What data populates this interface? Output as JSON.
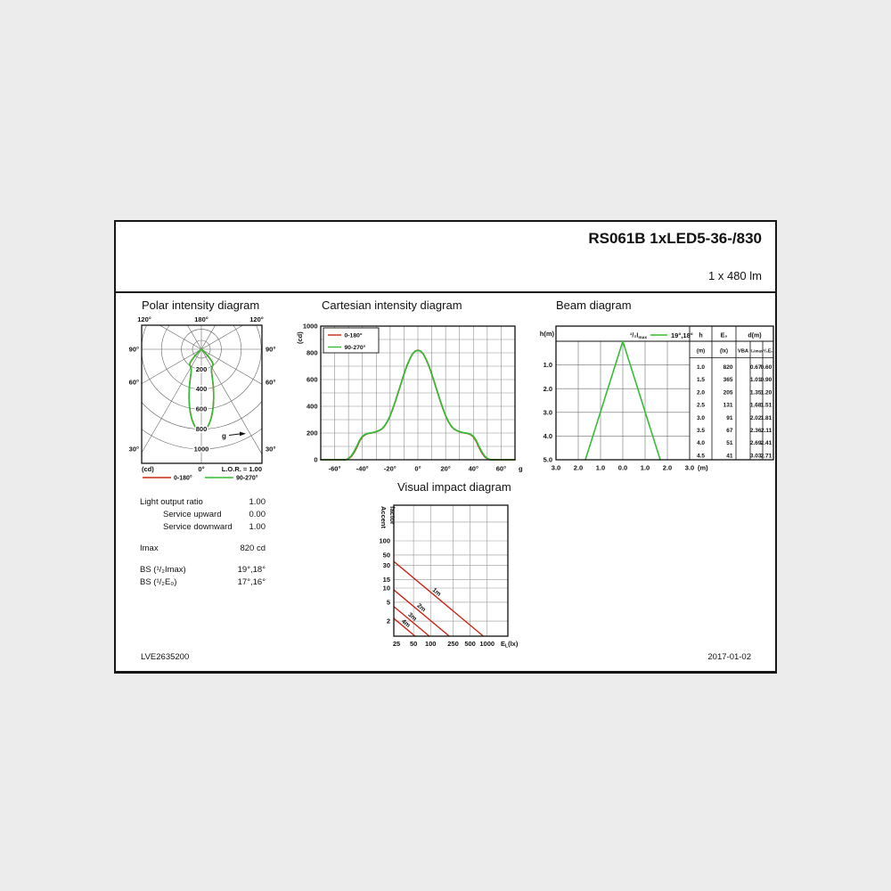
{
  "header": {
    "title": "RS061B 1xLED5-36-/830",
    "lumen": "1 x 480 lm"
  },
  "footer": {
    "left": "LVE2635200",
    "right": "2017-01-02"
  },
  "colors": {
    "red": "#cb2517",
    "green": "#35bd35"
  },
  "photometrics": {
    "rows": [
      {
        "label": "Light output ratio",
        "value": "1.00"
      },
      {
        "label": "Service upward",
        "value": "0.00",
        "indent": true
      },
      {
        "label": "Service downward",
        "value": "1.00",
        "indent": true
      },
      {
        "label": "Imax",
        "value": "820 cd",
        "gap": true
      },
      {
        "label": "BS (¹/₂Imax)",
        "value": "19°,18°",
        "gap": true
      },
      {
        "label": "BS (¹/₂E₀)",
        "value": "17°,16°"
      }
    ]
  },
  "chart_data": [
    {
      "id": "polar",
      "type": "polar-line",
      "title": "Polar intensity diagram",
      "rings_cd": [
        200,
        400,
        600,
        800,
        1000
      ],
      "max_cd": 1000,
      "top_labels": [
        "120°",
        "180°",
        "120°"
      ],
      "side_labels": [
        "90°",
        "60°",
        "30°"
      ],
      "bottom_left": "(cd)",
      "bottom_center": "0°",
      "bottom_right": "L.O.R. = 1.00",
      "gamma_label": "g",
      "legend": [
        {
          "name": "0-180°",
          "color": "red"
        },
        {
          "name": "90-270°",
          "color": "green"
        }
      ]
    },
    {
      "id": "cartesian",
      "type": "line",
      "title": "Cartesian intensity diagram",
      "ylabel": "(cd)",
      "x_axis_symbol": "g",
      "ylim": [
        0,
        1000
      ],
      "xlim": [
        -70,
        70
      ],
      "yticks": [
        0,
        200,
        400,
        600,
        800,
        1000
      ],
      "xtick_values": [
        -60,
        -40,
        -20,
        0,
        20,
        40,
        60
      ],
      "xtick_labels": [
        "-60°",
        "-40°",
        "-20°",
        "0°",
        "20°",
        "40°",
        "60°"
      ],
      "grid_step_x": 10,
      "grid_step_y": 100,
      "series": [
        {
          "name": "0-180°",
          "color": "red",
          "x": [
            -70,
            -52,
            -50,
            -48,
            -46,
            -44,
            -42,
            -40,
            -38,
            -36,
            -34,
            -32,
            -30,
            -28,
            -26,
            -24,
            -22,
            -20,
            -18,
            -16,
            -14,
            -12,
            -10,
            -8,
            -6,
            -4,
            -2,
            0,
            2,
            4,
            6,
            8,
            10,
            12,
            14,
            16,
            18,
            20,
            22,
            24,
            26,
            28,
            30,
            32,
            34,
            36,
            38,
            40,
            42,
            44,
            46,
            48,
            50,
            52,
            70
          ],
          "y": [
            0,
            0,
            8,
            25,
            55,
            95,
            140,
            172,
            188,
            196,
            200,
            204,
            210,
            218,
            230,
            252,
            285,
            330,
            385,
            445,
            510,
            575,
            640,
            700,
            750,
            790,
            812,
            820,
            812,
            790,
            750,
            700,
            640,
            575,
            510,
            445,
            385,
            330,
            285,
            252,
            230,
            218,
            210,
            204,
            200,
            196,
            188,
            172,
            140,
            95,
            55,
            25,
            8,
            0,
            0
          ]
        },
        {
          "name": "90-270°",
          "color": "green",
          "x": [
            -70,
            -52,
            -50,
            -48,
            -46,
            -44,
            -42,
            -40,
            -38,
            -36,
            -34,
            -32,
            -30,
            -28,
            -26,
            -24,
            -22,
            -20,
            -18,
            -16,
            -14,
            -12,
            -10,
            -8,
            -6,
            -4,
            -2,
            0,
            2,
            4,
            6,
            8,
            10,
            12,
            14,
            16,
            18,
            20,
            22,
            24,
            26,
            28,
            30,
            32,
            34,
            36,
            38,
            40,
            42,
            44,
            46,
            48,
            50,
            52,
            70
          ],
          "y": [
            0,
            0,
            10,
            30,
            62,
            102,
            146,
            176,
            190,
            197,
            201,
            205,
            211,
            219,
            231,
            253,
            286,
            331,
            386,
            446,
            511,
            576,
            641,
            701,
            751,
            791,
            813,
            818,
            813,
            791,
            751,
            701,
            641,
            576,
            511,
            446,
            386,
            331,
            286,
            253,
            231,
            219,
            211,
            205,
            201,
            197,
            190,
            176,
            146,
            102,
            62,
            30,
            10,
            0,
            0
          ]
        }
      ]
    },
    {
      "id": "beam",
      "type": "beam",
      "title": "Beam diagram",
      "ylabel": "h(m)",
      "x_unit": "(m)",
      "legend_main": "¹/₂I",
      "legend_sub": "max",
      "legend_value": "19°,18°",
      "h_ticks": [
        "1.0",
        "2.0",
        "3.0",
        "4.0",
        "5.0"
      ],
      "x_ticks": [
        "3.0",
        "2.0",
        "1.0",
        "0.0",
        "1.0",
        "2.0",
        "3.0"
      ],
      "beam_line": {
        "color": "green",
        "apex_h": 0,
        "half_width_at_h5_m": 1.68
      },
      "table": {
        "col_headers": [
          "h",
          "E₀",
          "d(m)"
        ],
        "sub_headers": [
          "(m)",
          "(lx)",
          "VBA",
          "¹/₂Imax",
          "¹/₂E₀"
        ],
        "rows": [
          [
            "1.0",
            "820",
            "",
            "0.67",
            "0.60"
          ],
          [
            "1.5",
            "365",
            "",
            "1.01",
            "0.90"
          ],
          [
            "2.0",
            "205",
            "",
            "1.35",
            "1.20"
          ],
          [
            "2.5",
            "131",
            "",
            "1.68",
            "1.51"
          ],
          [
            "3.0",
            "91",
            "",
            "2.02",
            "1.81"
          ],
          [
            "3.5",
            "67",
            "",
            "2.36",
            "2.11"
          ],
          [
            "4.0",
            "51",
            "",
            "2.69",
            "2.41"
          ],
          [
            "4.5",
            "41",
            "",
            "3.03",
            "2.71"
          ]
        ]
      }
    },
    {
      "id": "visual",
      "type": "loglog-lines",
      "title": "Visual impact diagram",
      "ylabel_lines": [
        "Accent",
        "factor"
      ],
      "x_unit": {
        "base": "E",
        "sub": "L",
        "suffix": "(lx)"
      },
      "yticks": [
        100,
        50,
        30,
        15,
        10,
        5,
        2
      ],
      "xticks": [
        25,
        50,
        100,
        250,
        500,
        1000
      ],
      "extra_hgrid": [
        250
      ],
      "lines": [
        {
          "label": "1m",
          "intensity": 820
        },
        {
          "label": "2m",
          "intensity": 205
        },
        {
          "label": "3m",
          "intensity": 91
        },
        {
          "label": "4m",
          "intensity": 51
        }
      ],
      "line_color": "red"
    }
  ]
}
